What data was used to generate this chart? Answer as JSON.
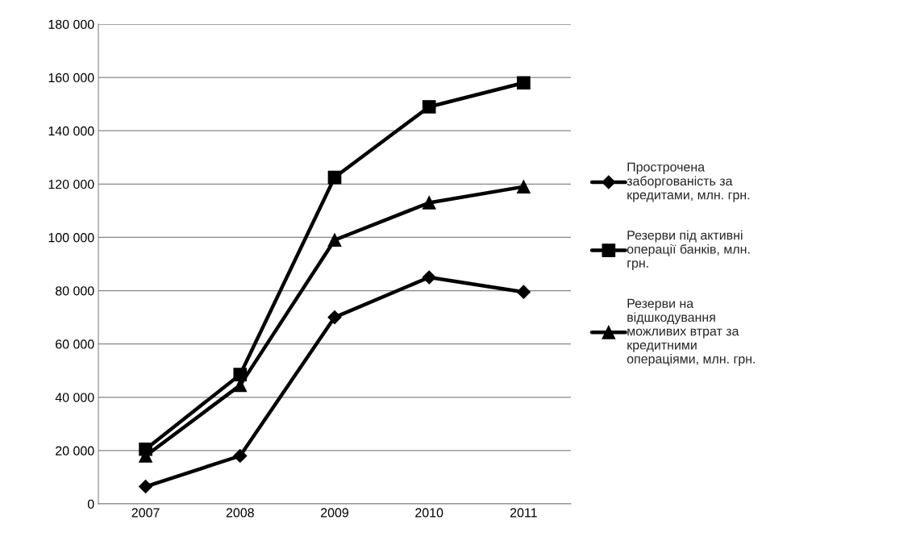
{
  "chart_data": {
    "type": "line",
    "categories": [
      "2007",
      "2008",
      "2009",
      "2010",
      "2011"
    ],
    "series": [
      {
        "name": "Прострочена\nзаборгованість за\nкредитами, млн. грн.",
        "color": "#000000",
        "marker": "diamond",
        "values": [
          6500,
          18000,
          70000,
          85000,
          79500
        ]
      },
      {
        "name": "Резерви під активні\nоперації банків, млн.\nгрн.",
        "color": "#000000",
        "marker": "square",
        "values": [
          20500,
          48500,
          122500,
          149000,
          158000
        ]
      },
      {
        "name": "Резерви на\nвідшкодування\nможливих втрат за\nкредитними\nопераціями, млн. грн.",
        "color": "#000000",
        "marker": "triangle",
        "values": [
          18000,
          44500,
          99000,
          113000,
          119000
        ]
      }
    ],
    "ylim": [
      0,
      180000
    ],
    "yticks": [
      {
        "value": 0,
        "label": "0"
      },
      {
        "value": 20000,
        "label": "20 000"
      },
      {
        "value": 40000,
        "label": "40 000"
      },
      {
        "value": 60000,
        "label": "60 000"
      },
      {
        "value": 80000,
        "label": "80 000"
      },
      {
        "value": 100000,
        "label": "100 000"
      },
      {
        "value": 120000,
        "label": "120 000"
      },
      {
        "value": 140000,
        "label": "140 000"
      },
      {
        "value": 160000,
        "label": "160 000"
      },
      {
        "value": 180000,
        "label": "180 000"
      }
    ],
    "grid": "y",
    "legend": "right",
    "line_style": "solid"
  }
}
